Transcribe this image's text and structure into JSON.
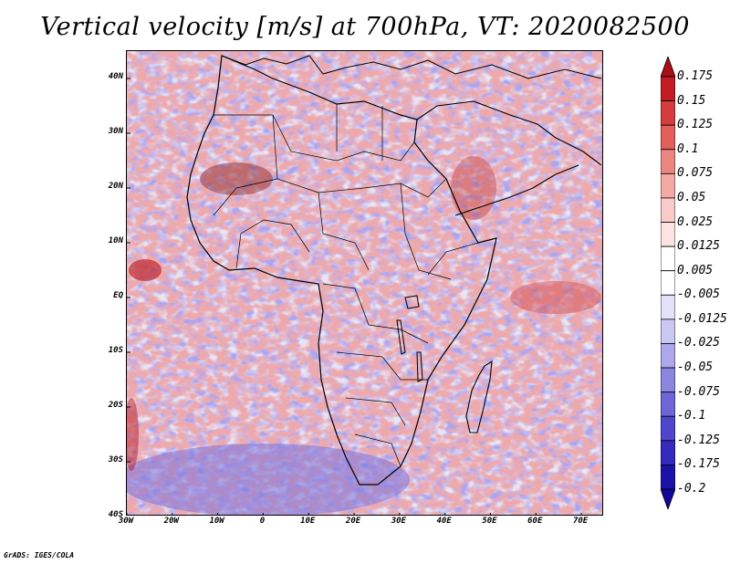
{
  "title": "Vertical velocity [m/s] at 700hPa, VT: 2020082500",
  "credit": "GrADS: IGES/COLA",
  "map": {
    "variable": "Vertical velocity",
    "units": "m/s",
    "level": "700hPa",
    "valid_time": "2020082500",
    "lon_range": [
      -30,
      75
    ],
    "lat_range": [
      -40,
      45
    ],
    "lat_labels": [
      {
        "value": 40,
        "text": "40N"
      },
      {
        "value": 30,
        "text": "30N"
      },
      {
        "value": 20,
        "text": "20N"
      },
      {
        "value": 10,
        "text": "10N"
      },
      {
        "value": 0,
        "text": "EQ"
      },
      {
        "value": -10,
        "text": "10S"
      },
      {
        "value": -20,
        "text": "20S"
      },
      {
        "value": -30,
        "text": "30S"
      },
      {
        "value": -40,
        "text": "40S"
      }
    ],
    "lon_labels": [
      {
        "value": -30,
        "text": "30W"
      },
      {
        "value": -20,
        "text": "20W"
      },
      {
        "value": -10,
        "text": "10W"
      },
      {
        "value": 0,
        "text": "0"
      },
      {
        "value": 10,
        "text": "10E"
      },
      {
        "value": 20,
        "text": "20E"
      },
      {
        "value": 30,
        "text": "30E"
      },
      {
        "value": 40,
        "text": "40E"
      },
      {
        "value": 50,
        "text": "50E"
      },
      {
        "value": 60,
        "text": "60E"
      },
      {
        "value": 70,
        "text": "70E"
      }
    ]
  },
  "colorbar": {
    "levels": [
      "0.175",
      "0.15",
      "0.125",
      "0.1",
      "0.075",
      "0.05",
      "0.025",
      "0.0125",
      "0.005",
      "-0.005",
      "-0.0125",
      "-0.025",
      "-0.05",
      "-0.075",
      "-0.1",
      "-0.125",
      "-0.175",
      "-0.2"
    ],
    "colors": [
      "#a50f15",
      "#c21d24",
      "#d73c3c",
      "#e35f5a",
      "#ec8680",
      "#f3aaa5",
      "#f8cbc8",
      "#fce3e1",
      "#ffffff",
      "#ffffff",
      "#e4e2f8",
      "#cbc9f2",
      "#aca8ea",
      "#8c86e0",
      "#6e66d8",
      "#4f46cc",
      "#3529be",
      "#1d12a8",
      "#110699"
    ]
  }
}
